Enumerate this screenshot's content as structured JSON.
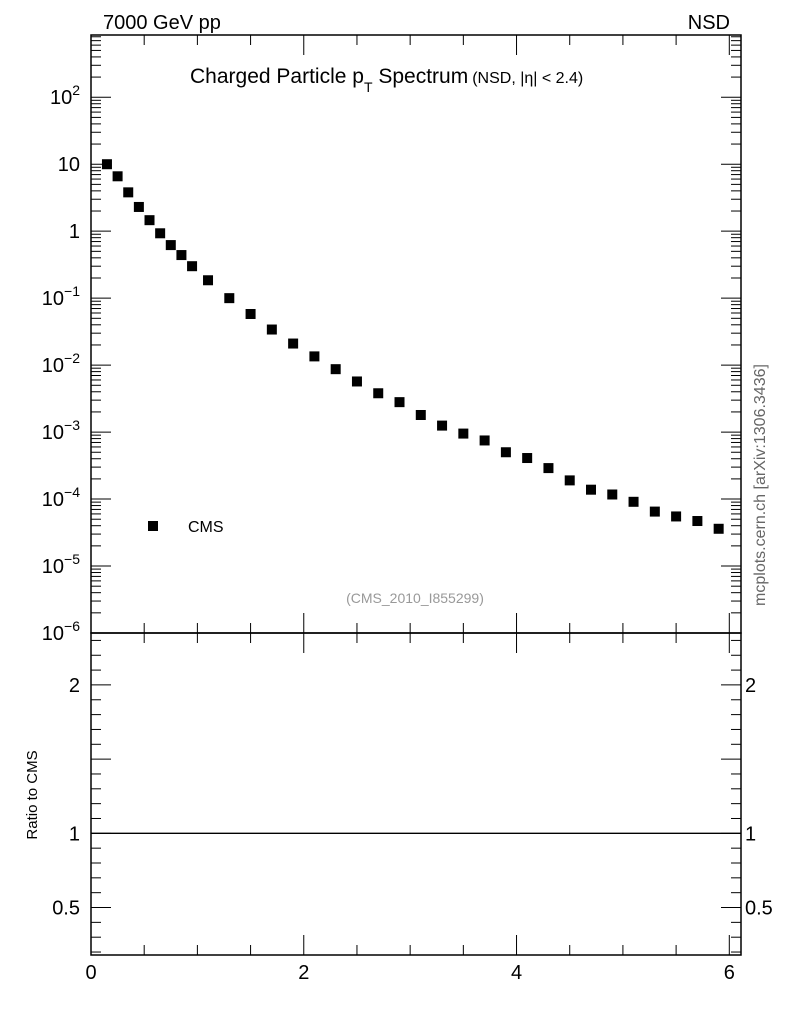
{
  "header": {
    "left": "7000 GeV pp",
    "right": "NSD"
  },
  "side_label": "mcplots.cern.ch [arXiv:1306.3436]",
  "watermark": "(CMS_2010_I855299)",
  "colors": {
    "marker": "#000000",
    "watermark": "#999999",
    "side_label": "#666666"
  },
  "chart_data": [
    {
      "type": "scatter",
      "title": "Charged Particle p",
      "title_sub": "T",
      "title_main_tail": " Spectrum",
      "title_small": "(NSD, |η| < 2.4)",
      "xlabel": "",
      "ylabel": "",
      "xlim": [
        0,
        6.11
      ],
      "ylim": [
        1e-06,
        850
      ],
      "yscale": "log",
      "ytick_labels": [
        {
          "value": 100,
          "base": "10",
          "exp": "2"
        },
        {
          "value": 10,
          "base": "10",
          "exp": ""
        },
        {
          "value": 1,
          "base": "1",
          "exp": ""
        },
        {
          "value": 0.1,
          "base": "10",
          "exp": "−1"
        },
        {
          "value": 0.01,
          "base": "10",
          "exp": "−2"
        },
        {
          "value": 0.001,
          "base": "10",
          "exp": "−3"
        },
        {
          "value": 0.0001,
          "base": "10",
          "exp": "−4"
        },
        {
          "value": 1e-05,
          "base": "10",
          "exp": "−5"
        },
        {
          "value": 1e-06,
          "base": "10",
          "exp": "−6"
        }
      ],
      "legend": {
        "entries": [
          "CMS"
        ],
        "placement": "lower-left"
      },
      "series": [
        {
          "name": "CMS",
          "x": [
            0.15,
            0.25,
            0.35,
            0.45,
            0.55,
            0.65,
            0.75,
            0.85,
            0.95,
            1.1,
            1.3,
            1.5,
            1.7,
            1.9,
            2.1,
            2.3,
            2.5,
            2.7,
            2.9,
            3.1,
            3.3,
            3.5,
            3.7,
            3.9,
            4.1,
            4.3,
            4.5,
            4.7,
            4.9,
            5.1,
            5.3,
            5.5,
            5.7,
            5.9
          ],
          "y": [
            10,
            6.6,
            3.8,
            2.3,
            1.46,
            0.93,
            0.62,
            0.44,
            0.3,
            0.185,
            0.1,
            0.058,
            0.034,
            0.021,
            0.0135,
            0.0087,
            0.0057,
            0.0038,
            0.0028,
            0.0018,
            0.00125,
            0.00095,
            0.00075,
            0.0005,
            0.00041,
            0.00029,
            0.00019,
            0.000138,
            0.000117,
            9.1e-05,
            6.5e-05,
            5.5e-05,
            4.7e-05,
            3.6e-05
          ]
        }
      ]
    },
    {
      "type": "line",
      "ylabel": "Ratio to CMS",
      "xlim": [
        0,
        6.11
      ],
      "ylim": [
        0.18,
        2.35
      ],
      "xtick_labels": [
        "0",
        "2",
        "4",
        "6"
      ],
      "xtick_values": [
        0,
        2,
        4,
        6
      ],
      "ytick_labels": [
        "0.5",
        "1",
        "2"
      ],
      "ytick_values": [
        0.5,
        1,
        2
      ],
      "reference_line": 1
    }
  ]
}
